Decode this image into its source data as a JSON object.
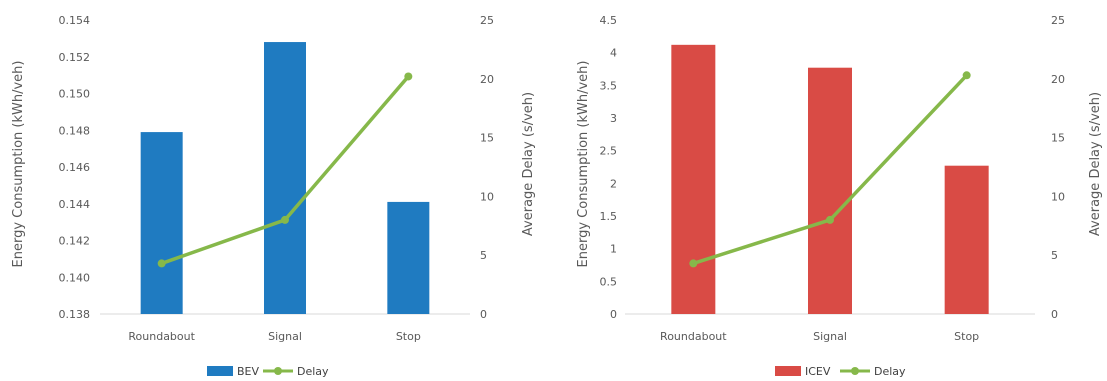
{
  "chart_data": [
    {
      "type": "bar",
      "categories": [
        "Roundabout",
        "Signal",
        "Stop"
      ],
      "series": [
        {
          "name": "BEV",
          "kind": "bar",
          "axis": "left",
          "color": "#1F7BC1",
          "values": [
            0.1479,
            0.1528,
            0.1441
          ]
        },
        {
          "name": "Delay",
          "kind": "line",
          "axis": "right",
          "color": "#86B84A",
          "values": [
            4.3,
            8.0,
            20.2
          ]
        }
      ],
      "ylabel": "Energy Consumption (kWh/veh)",
      "y2label": "Average Delay (s/veh)",
      "ylim": [
        0.138,
        0.154
      ],
      "y2lim": [
        0,
        25
      ],
      "yticks": [
        "0.138",
        "0.140",
        "0.142",
        "0.144",
        "0.146",
        "0.148",
        "0.150",
        "0.152",
        "0.154"
      ],
      "y2ticks": [
        "0",
        "5",
        "10",
        "15",
        "20",
        "25"
      ],
      "grid": false,
      "legend": "bottom"
    },
    {
      "type": "bar",
      "categories": [
        "Roundabout",
        "Signal",
        "Stop"
      ],
      "series": [
        {
          "name": "ICEV",
          "kind": "bar",
          "axis": "left",
          "color": "#D94B45",
          "values": [
            4.12,
            3.77,
            2.27
          ]
        },
        {
          "name": "Delay",
          "kind": "line",
          "axis": "right",
          "color": "#86B84A",
          "values": [
            4.3,
            8.0,
            20.3
          ]
        }
      ],
      "ylabel": "Energy Consumption (kWh/veh)",
      "y2label": "Average Delay (s/veh)",
      "ylim": [
        0,
        4.5
      ],
      "y2lim": [
        0,
        25
      ],
      "yticks": [
        "0",
        "0.5",
        "1",
        "1.5",
        "2",
        "2.5",
        "3",
        "3.5",
        "4",
        "4.5"
      ],
      "y2ticks": [
        "0",
        "5",
        "10",
        "15",
        "20",
        "25"
      ],
      "grid": false,
      "legend": "bottom"
    }
  ]
}
